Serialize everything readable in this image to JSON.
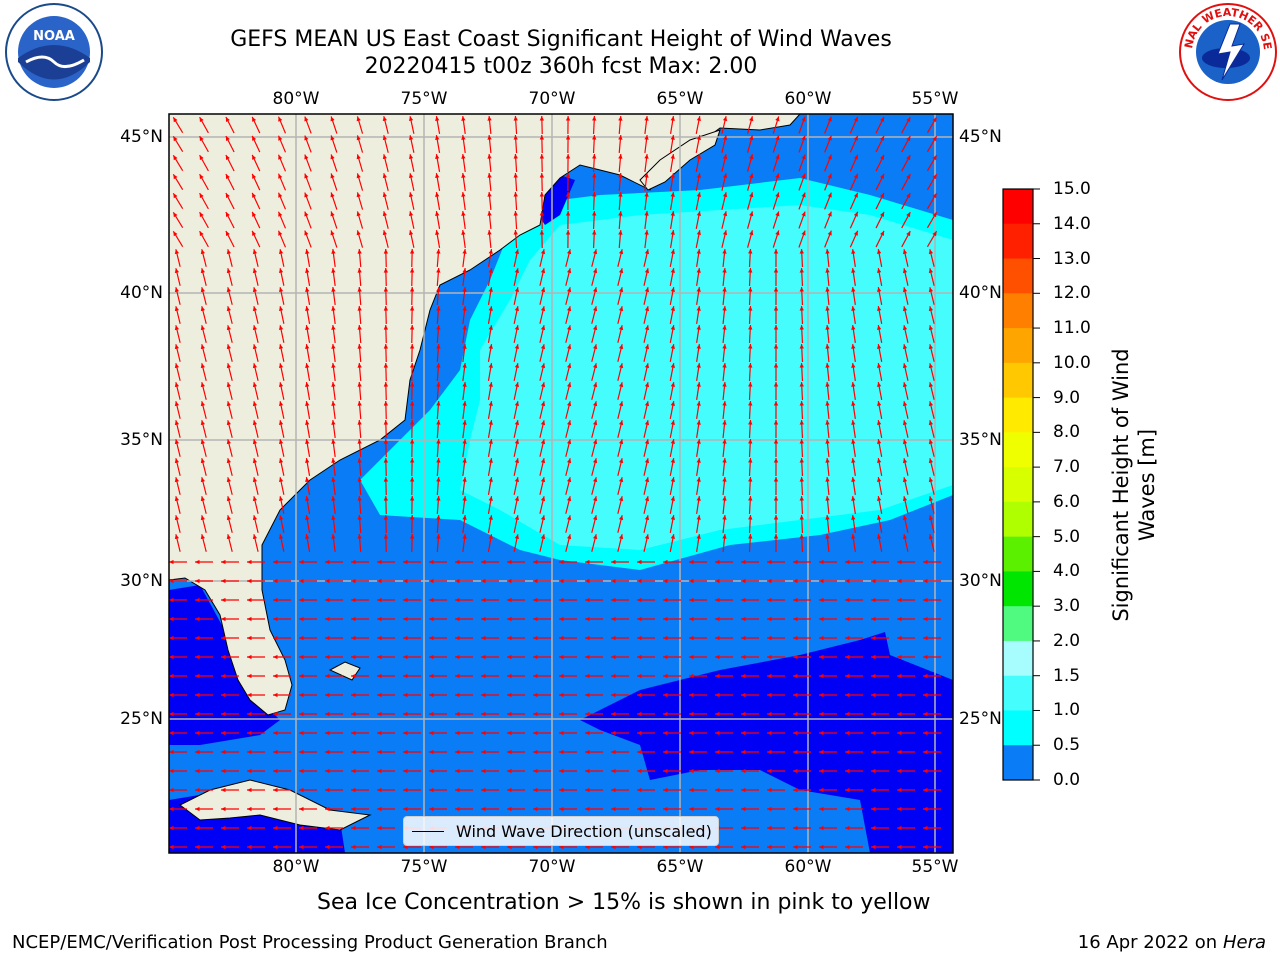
{
  "header": {
    "title_line1": "GEFS MEAN US East Coast Significant Height of Wind Waves",
    "title_line2": "20220415 t00z 360h fcst   Max: 2.00"
  },
  "logos": {
    "noaa_text": "NOAA",
    "nws_text": "NATIONAL WEATHER SERVICE"
  },
  "map": {
    "lon_labels": [
      "80°W",
      "75°W",
      "70°W",
      "65°W",
      "60°W",
      "55°W"
    ],
    "lat_labels": [
      "45°N",
      "40°N",
      "35°N",
      "30°N",
      "25°N"
    ],
    "colors": {
      "land": "#eeeede",
      "wave_0_0_5": "#0000f5",
      "wave_0_5_1_0": "#0a7cf5",
      "wave_1_0_1_5": "#00ffff",
      "wave_1_5_2_0": "#45fdfd",
      "wave_2_0_3_0": "#a7fdfd",
      "arrow": "#ff0000",
      "grid": "#b4b4b4"
    },
    "legend_label": "Wind Wave Direction (unscaled)"
  },
  "colorbar": {
    "ticks": [
      "15.0",
      "14.0",
      "13.0",
      "12.0",
      "11.0",
      "10.0",
      "9.0",
      "8.0",
      "7.0",
      "6.0",
      "5.0",
      "4.0",
      "3.0",
      "2.0",
      "1.5",
      "1.0",
      "0.5",
      "0.0"
    ],
    "colors": [
      "#ff0000",
      "#ff2000",
      "#ff5000",
      "#ff7f00",
      "#ffa500",
      "#ffc800",
      "#ffea00",
      "#f0ff00",
      "#d7ff00",
      "#b0ff00",
      "#5af000",
      "#00e600",
      "#50fa80",
      "#a7fdfd",
      "#45fdfd",
      "#00ffff",
      "#0a7cf5",
      "#0000f5"
    ],
    "label": "Significant Height of Wind Waves [m]"
  },
  "footer": {
    "ice_note": "Sea Ice Concentration > 15% is shown in pink to yellow",
    "left": "NCEP/EMC/Verification Post Processing Product Generation Branch",
    "right_date": "16 Apr 2022 on ",
    "right_host": "Hera"
  }
}
